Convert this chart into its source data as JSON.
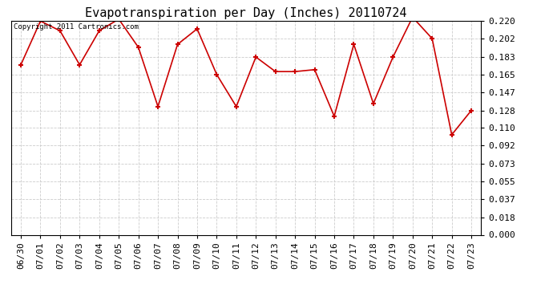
{
  "title": "Evapotranspiration per Day (Inches) 20110724",
  "copyright_text": "Copyright 2011 Cartronics.com",
  "dates": [
    "06/30",
    "07/01",
    "07/02",
    "07/03",
    "07/04",
    "07/05",
    "07/06",
    "07/07",
    "07/08",
    "07/09",
    "07/10",
    "07/11",
    "07/12",
    "07/13",
    "07/14",
    "07/15",
    "07/16",
    "07/17",
    "07/18",
    "07/19",
    "07/20",
    "07/21",
    "07/22",
    "07/23"
  ],
  "values": [
    0.175,
    0.22,
    0.21,
    0.175,
    0.21,
    0.222,
    0.193,
    0.132,
    0.196,
    0.212,
    0.165,
    0.132,
    0.183,
    0.168,
    0.168,
    0.17,
    0.122,
    0.196,
    0.135,
    0.183,
    0.224,
    0.202,
    0.103,
    0.128
  ],
  "line_color": "#cc0000",
  "marker": "+",
  "marker_size": 5,
  "marker_linewidth": 1.5,
  "line_width": 1.2,
  "yticks": [
    0.0,
    0.018,
    0.037,
    0.055,
    0.073,
    0.092,
    0.11,
    0.128,
    0.147,
    0.165,
    0.183,
    0.202,
    0.22
  ],
  "ylim_min": 0.0,
  "ylim_max": 0.22,
  "background_color": "#ffffff",
  "grid_color": "#cccccc",
  "title_fontsize": 11,
  "tick_fontsize": 8,
  "copyright_fontsize": 6.5,
  "spine_color": "#000000"
}
